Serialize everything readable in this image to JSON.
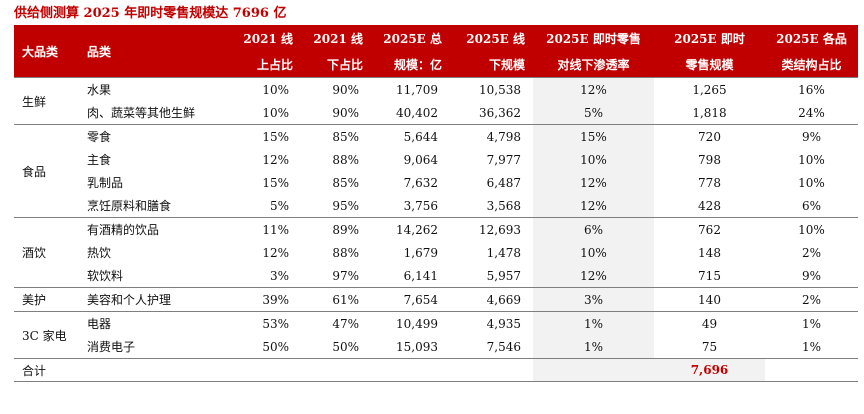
{
  "title": "供给侧测算 2025 年即时零售规模达 7696 亿",
  "headers": {
    "row1": [
      "大品类",
      "品类",
      "2021 线",
      "2021 线",
      "2025E 总",
      "2025E 线",
      "2025E 即时零售",
      "2025E 即时",
      "2025E 各品"
    ],
    "row2": [
      "上占比",
      "下占比",
      "规模：亿",
      "下规模",
      "对线下渗透率",
      "零售规模",
      "类结构占比"
    ]
  },
  "groups": [
    {
      "category": "生鲜",
      "rows": [
        [
          "水果",
          "10%",
          "90%",
          "11,709",
          "10,538",
          "12%",
          "1,265",
          "16%"
        ],
        [
          "肉、蔬菜等其他生鲜",
          "10%",
          "90%",
          "40,402",
          "36,362",
          "5%",
          "1,818",
          "24%"
        ]
      ]
    },
    {
      "category": "食品",
      "rows": [
        [
          "零食",
          "15%",
          "85%",
          "5,644",
          "4,798",
          "15%",
          "720",
          "9%"
        ],
        [
          "主食",
          "12%",
          "88%",
          "9,064",
          "7,977",
          "10%",
          "798",
          "10%"
        ],
        [
          "乳制品",
          "15%",
          "85%",
          "7,632",
          "6,487",
          "12%",
          "778",
          "10%"
        ],
        [
          "烹饪原料和膳食",
          "5%",
          "95%",
          "3,756",
          "3,568",
          "12%",
          "428",
          "6%"
        ]
      ]
    },
    {
      "category": "酒饮",
      "rows": [
        [
          "有酒精的饮品",
          "11%",
          "89%",
          "14,262",
          "12,693",
          "6%",
          "762",
          "10%"
        ],
        [
          "热饮",
          "12%",
          "88%",
          "1,679",
          "1,478",
          "10%",
          "148",
          "2%"
        ],
        [
          "软饮料",
          "3%",
          "97%",
          "6,141",
          "5,957",
          "12%",
          "715",
          "9%"
        ]
      ]
    },
    {
      "category": "美护",
      "rows": [
        [
          "美容和个人护理",
          "39%",
          "61%",
          "7,654",
          "4,669",
          "3%",
          "140",
          "2%"
        ]
      ]
    },
    {
      "category": "3C 家电",
      "rows": [
        [
          "电器",
          "53%",
          "47%",
          "10,499",
          "4,935",
          "1%",
          "49",
          "1%"
        ],
        [
          "消费电子",
          "50%",
          "50%",
          "15,093",
          "7,546",
          "1%",
          "75",
          "1%"
        ]
      ]
    }
  ],
  "total": {
    "label": "合计",
    "value": "7,696"
  },
  "colors": {
    "header_bg": "#c00000",
    "title": "#c00000",
    "shade": "#f2f2f2",
    "rule": "#7f7f7f"
  }
}
